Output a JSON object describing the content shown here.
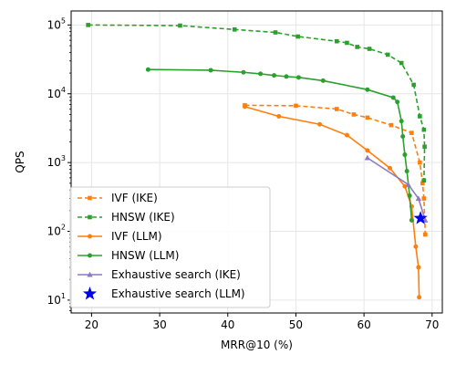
{
  "chart_data": {
    "type": "line",
    "xlabel": "MRR@10 (%)",
    "ylabel": "QPS",
    "xlim": [
      17,
      71.5
    ],
    "ylim": [
      6.5,
      160000
    ],
    "yscale": "log",
    "grid": true,
    "legend_position": "lower-left",
    "x_ticks": [
      20,
      30,
      40,
      50,
      60,
      70
    ],
    "x_tick_labels": [
      "20",
      "30",
      "40",
      "50",
      "60",
      "70"
    ],
    "y_ticks": [
      10,
      100,
      1000,
      10000,
      100000
    ],
    "y_tick_labels": [
      "10",
      "10",
      "10",
      "10",
      "10"
    ],
    "y_tick_exponents": [
      "1",
      "2",
      "3",
      "4",
      "5"
    ],
    "series": [
      {
        "name": "IVF (IKE)",
        "color": "#ff7f0e",
        "dashed": true,
        "marker": "square",
        "x": [
          42.5,
          50.0,
          56.0,
          58.5,
          60.5,
          64.0,
          67.0,
          68.2,
          68.6,
          68.8,
          69.0
        ],
        "y": [
          6800,
          6700,
          6000,
          5000,
          4500,
          3500,
          2700,
          1000,
          500,
          300,
          90
        ]
      },
      {
        "name": "HNSW (IKE)",
        "color": "#2ca02c",
        "dashed": true,
        "marker": "square",
        "x": [
          19.5,
          33.0,
          41.0,
          47.0,
          50.3,
          56.0,
          57.5,
          59.0,
          60.8,
          63.5,
          65.5,
          67.3,
          68.2,
          68.8,
          68.9,
          68.8
        ],
        "y": [
          100000,
          98000,
          86000,
          78000,
          68000,
          58000,
          55000,
          48000,
          45000,
          37000,
          28000,
          13500,
          4700,
          3000,
          1700,
          550
        ]
      },
      {
        "name": "IVF (LLM)",
        "color": "#ff7f0e",
        "dashed": false,
        "marker": "circle",
        "x": [
          42.5,
          47.5,
          53.5,
          57.5,
          60.5,
          63.8,
          66.0,
          67.0,
          67.6,
          68.0,
          68.1
        ],
        "y": [
          6500,
          4700,
          3600,
          2500,
          1500,
          830,
          450,
          230,
          60,
          30,
          11
        ]
      },
      {
        "name": "HNSW (LLM)",
        "color": "#2ca02c",
        "dashed": false,
        "marker": "circle",
        "x": [
          28.3,
          37.5,
          42.3,
          44.8,
          46.8,
          48.6,
          50.4,
          54.0,
          60.5,
          64.3,
          64.9,
          65.5,
          65.7,
          66.0,
          66.3,
          66.7,
          67.0
        ],
        "y": [
          22500,
          22000,
          20500,
          19500,
          18500,
          17800,
          17300,
          15500,
          11500,
          8800,
          7600,
          4000,
          2400,
          1300,
          750,
          330,
          145
        ]
      },
      {
        "name": "Exhaustive search (IKE)",
        "color": "#8c7bbf",
        "dashed": false,
        "marker": "triangle",
        "x": [
          60.5,
          66.5,
          68.0,
          69.0
        ],
        "y": [
          1170,
          480,
          300,
          145
        ]
      },
      {
        "name": "Exhaustive search (LLM)",
        "color": "#0000ee",
        "dashed": false,
        "marker": "star",
        "x": [
          68.3
        ],
        "y": [
          155
        ]
      }
    ]
  }
}
